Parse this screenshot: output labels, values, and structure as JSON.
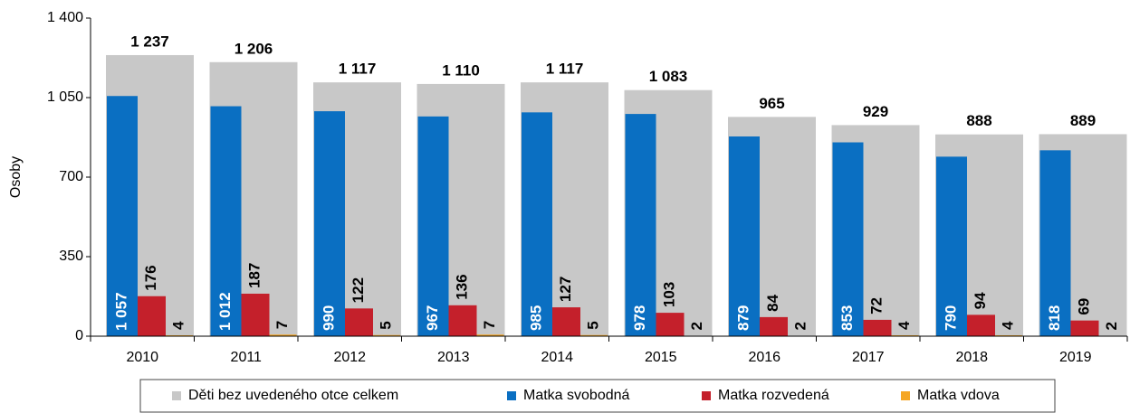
{
  "chart_data": {
    "type": "bar",
    "y_label": "Osoby",
    "categories": [
      "2010",
      "2011",
      "2012",
      "2013",
      "2014",
      "2015",
      "2016",
      "2017",
      "2018",
      "2019"
    ],
    "series": [
      {
        "name": "Děti bez uvedeného otce celkem",
        "color": "#c8c8c8",
        "values": [
          1237,
          1206,
          1117,
          1110,
          1117,
          1083,
          965,
          929,
          888,
          889
        ],
        "value_labels": [
          "1 237",
          "1 206",
          "1 117",
          "1 110",
          "1 117",
          "1 083",
          "965",
          "929",
          "888",
          "889"
        ]
      },
      {
        "name": "Matka svobodná",
        "color": "#0a6fc2",
        "values": [
          1057,
          1012,
          990,
          967,
          985,
          978,
          879,
          853,
          790,
          818
        ],
        "value_labels": [
          "1 057",
          "1 012",
          "990",
          "967",
          "985",
          "978",
          "879",
          "853",
          "790",
          "818"
        ]
      },
      {
        "name": "Matka rozvedená",
        "color": "#c4202b",
        "values": [
          176,
          187,
          122,
          136,
          127,
          103,
          84,
          72,
          94,
          69
        ]
      },
      {
        "name": "Matka vdova",
        "color": "#f5a623",
        "values": [
          4,
          7,
          5,
          7,
          5,
          2,
          2,
          4,
          4,
          2
        ]
      }
    ],
    "ylim": [
      0,
      1400
    ],
    "yticks": [
      0,
      350,
      700,
      {
        "value": 1050,
        "label": "1 050"
      },
      {
        "value": 1400,
        "label": "1 400"
      }
    ]
  }
}
